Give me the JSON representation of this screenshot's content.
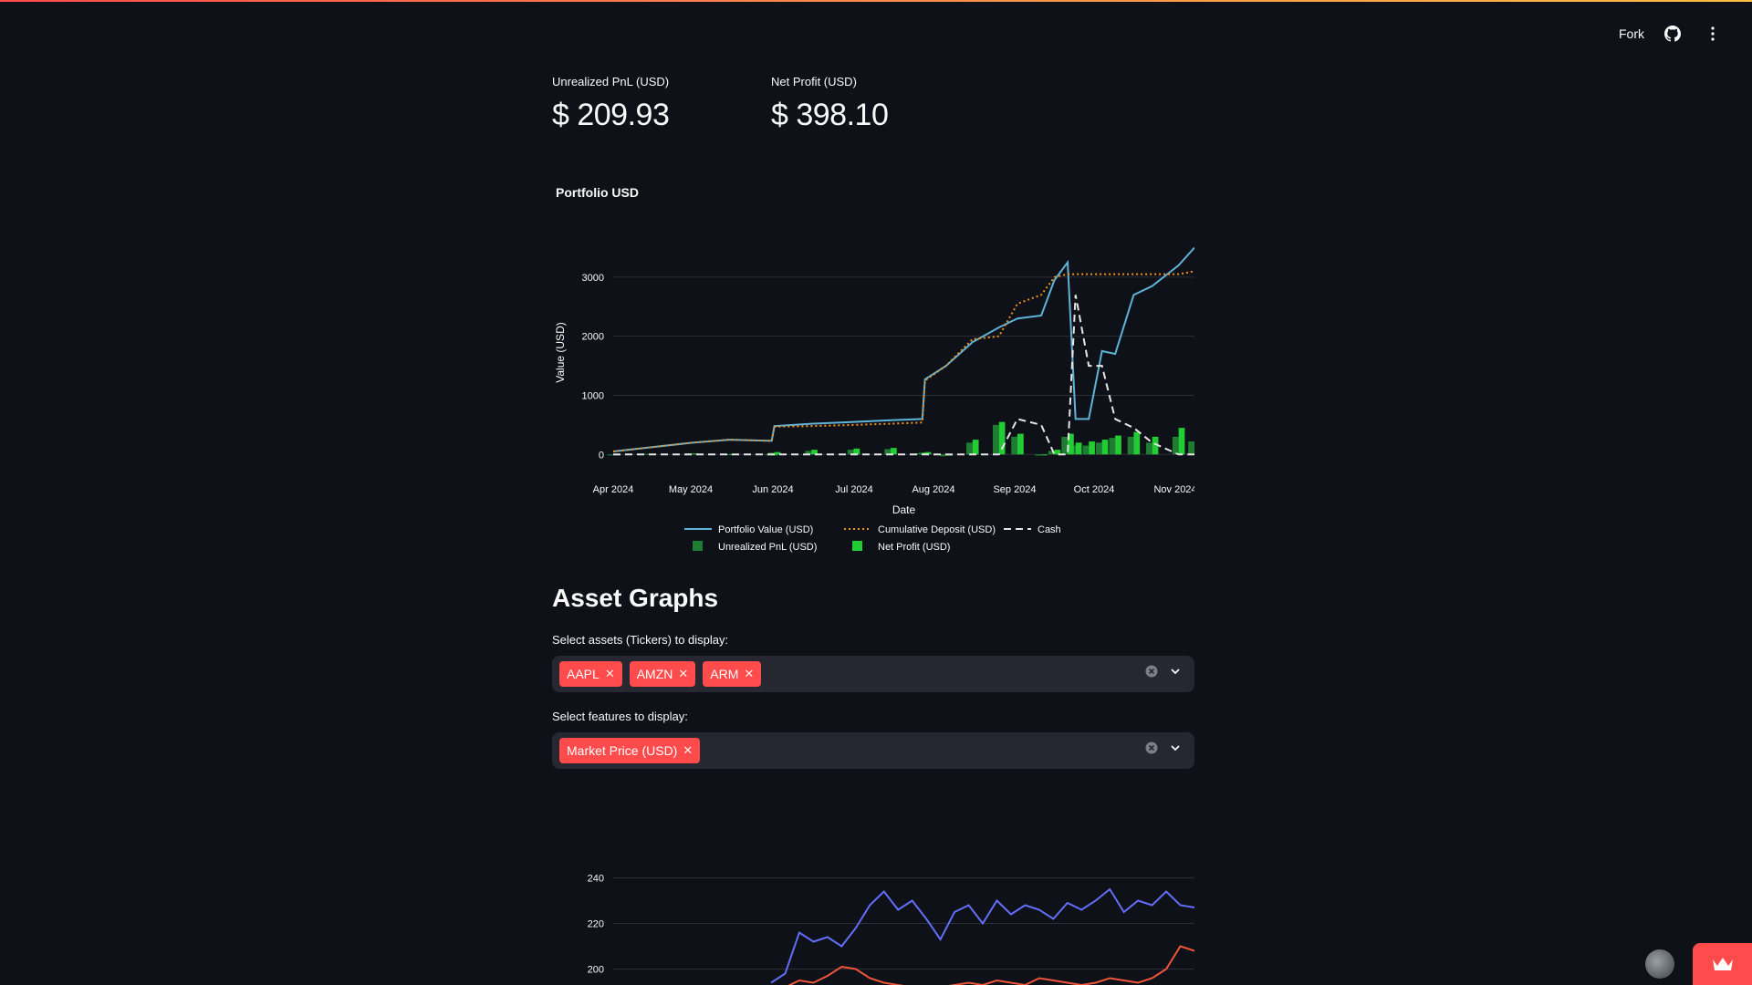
{
  "header": {
    "fork_label": "Fork",
    "github_icon": "github-icon",
    "menu_icon": "kebab-menu-icon"
  },
  "metrics": [
    {
      "label": "Unrealized PnL (USD)",
      "value": "$ 209.93"
    },
    {
      "label": "Net Profit (USD)",
      "value": "$ 398.10"
    }
  ],
  "portfolio_chart_title": "Portfolio USD",
  "asset_graphs": {
    "heading": "Asset Graphs",
    "assets_label": "Select assets (Tickers) to display:",
    "assets_selected": [
      "AAPL",
      "AMZN",
      "ARM"
    ],
    "features_label": "Select features to display:",
    "features_selected": [
      "Market Price (USD)"
    ]
  },
  "chart_data": [
    {
      "type": "line",
      "xlabel": "Date",
      "ylabel": "Value (USD)",
      "ylim": [
        -150,
        3600
      ],
      "x_ticks": [
        "Apr 2024",
        "May 2024",
        "Jun 2024",
        "Jul 2024",
        "Aug 2024",
        "Sep 2024",
        "Oct 2024",
        "Nov 2024"
      ],
      "y_ticks": [
        0,
        1000,
        2000,
        3000
      ],
      "grid": true,
      "legend_position": "bottom",
      "x": [
        "2024-04-01",
        "2024-04-15",
        "2024-05-01",
        "2024-05-15",
        "2024-05-31",
        "2024-06-01",
        "2024-06-15",
        "2024-07-01",
        "2024-07-15",
        "2024-07-27",
        "2024-07-28",
        "2024-08-05",
        "2024-08-15",
        "2024-08-25",
        "2024-09-01",
        "2024-09-10",
        "2024-09-15",
        "2024-09-20",
        "2024-09-23",
        "2024-09-28",
        "2024-10-03",
        "2024-10-08",
        "2024-10-15",
        "2024-10-22",
        "2024-11-01",
        "2024-11-07"
      ],
      "series": [
        {
          "name": "Portfolio Value (USD)",
          "style": "solid",
          "color": "#5fb3d9",
          "values": [
            50,
            120,
            200,
            250,
            230,
            480,
            520,
            550,
            580,
            600,
            1270,
            1500,
            1900,
            2150,
            2300,
            2350,
            2950,
            3250,
            600,
            600,
            1750,
            1700,
            2700,
            2850,
            3200,
            3500
          ]
        },
        {
          "name": "Cumulative Deposit (USD)",
          "style": "dotted",
          "color": "#f0931e",
          "values": [
            50,
            120,
            200,
            250,
            230,
            470,
            480,
            500,
            520,
            540,
            1250,
            1500,
            1950,
            2000,
            2550,
            2700,
            3000,
            3050,
            3050,
            3050,
            3050,
            3050,
            3050,
            3050,
            3050,
            3100
          ]
        },
        {
          "name": "Cash",
          "style": "dashed",
          "color": "#e6e6e6",
          "values": [
            0,
            0,
            0,
            0,
            0,
            0,
            0,
            0,
            0,
            0,
            0,
            0,
            0,
            0,
            600,
            500,
            0,
            0,
            2700,
            1500,
            1500,
            600,
            450,
            200,
            0,
            0
          ]
        }
      ],
      "bars": [
        {
          "name": "Unrealized PnL (USD)",
          "color": "#1e7d32",
          "values": [
            0,
            10,
            15,
            5,
            0,
            30,
            60,
            80,
            90,
            20,
            30,
            -30,
            200,
            500,
            300,
            -20,
            60,
            300,
            150,
            150,
            200,
            280,
            300,
            200,
            300,
            220
          ]
        },
        {
          "name": "Net Profit (USD)",
          "color": "#22cc33",
          "values": [
            0,
            10,
            15,
            5,
            0,
            40,
            80,
            100,
            110,
            30,
            40,
            -20,
            250,
            550,
            350,
            -10,
            80,
            350,
            200,
            220,
            250,
            320,
            380,
            300,
            450,
            600
          ]
        }
      ]
    },
    {
      "type": "line",
      "ylim": [
        193,
        245
      ],
      "y_ticks": [
        200,
        220,
        240
      ],
      "grid": true,
      "series": [
        {
          "color": "#636efa",
          "values": [
            194,
            198,
            216,
            212,
            214,
            210,
            218,
            228,
            234,
            226,
            230,
            222,
            213,
            225,
            228,
            220,
            230,
            224,
            228,
            226,
            222,
            229,
            226,
            230,
            235,
            225,
            230,
            228,
            234,
            228,
            227
          ]
        },
        {
          "color": "#ef553b",
          "values": [
            190,
            192,
            195,
            194,
            197,
            201,
            200,
            196,
            194,
            193,
            192,
            191,
            192,
            193,
            194,
            193,
            195,
            194,
            193,
            196,
            195,
            194,
            193,
            194,
            196,
            195,
            194,
            196,
            200,
            210,
            208
          ]
        }
      ]
    }
  ]
}
